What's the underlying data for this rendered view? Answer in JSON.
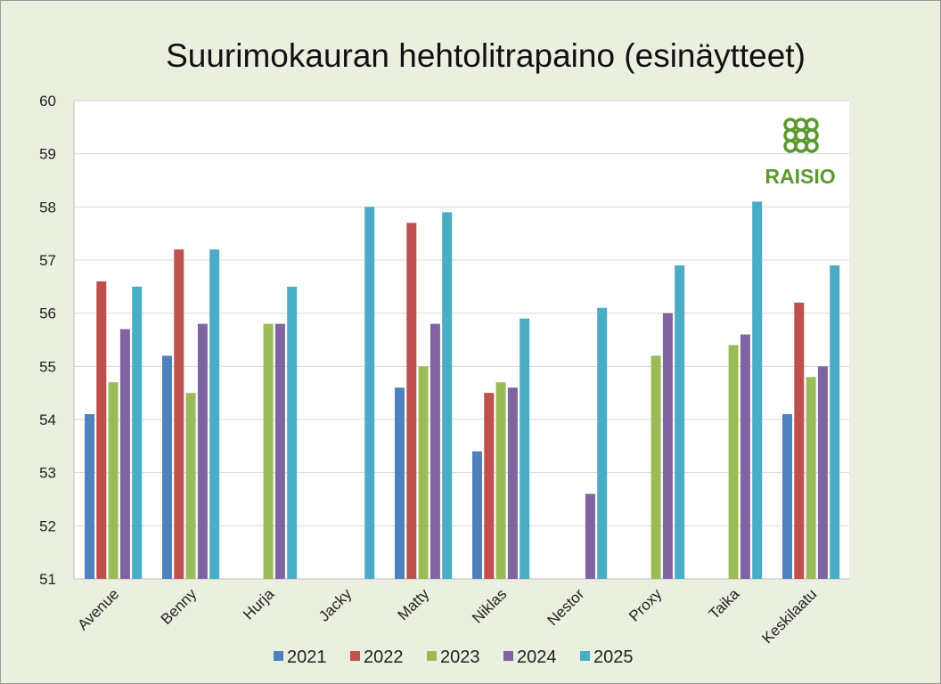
{
  "chart_data": {
    "type": "bar",
    "title": "Suurimokauran hehtolitrapaino (esinäytteet)",
    "xlabel": "",
    "ylabel": "",
    "ylim": [
      51,
      60
    ],
    "yticks": [
      51,
      52,
      53,
      54,
      55,
      56,
      57,
      58,
      59,
      60
    ],
    "grid": true,
    "legend": "bottom",
    "categories": [
      "Avenue",
      "Benny",
      "Hurja",
      "Jacky",
      "Matty",
      "Niklas",
      "Nestor",
      "Proxy",
      "Taika",
      "Keskilaatu"
    ],
    "series": [
      {
        "name": "2021",
        "color": "#4f81bd",
        "values": [
          54.1,
          55.2,
          null,
          null,
          54.6,
          53.4,
          null,
          null,
          null,
          54.1
        ]
      },
      {
        "name": "2022",
        "color": "#c0504d",
        "values": [
          56.6,
          57.2,
          null,
          null,
          57.7,
          54.5,
          null,
          null,
          null,
          56.2
        ]
      },
      {
        "name": "2023",
        "color": "#9bbb59",
        "values": [
          54.7,
          54.5,
          55.8,
          null,
          55.0,
          54.7,
          null,
          55.2,
          55.4,
          54.8
        ]
      },
      {
        "name": "2024",
        "color": "#8064a2",
        "values": [
          55.7,
          55.8,
          55.8,
          null,
          55.8,
          54.6,
          52.6,
          56.0,
          55.6,
          55.0
        ]
      },
      {
        "name": "2025",
        "color": "#4bacc6",
        "values": [
          56.5,
          57.2,
          56.5,
          58.0,
          57.9,
          55.9,
          56.1,
          56.9,
          58.1,
          56.9
        ]
      }
    ]
  },
  "logo": {
    "text": "RAISIO",
    "color": "#5a9a2e"
  }
}
